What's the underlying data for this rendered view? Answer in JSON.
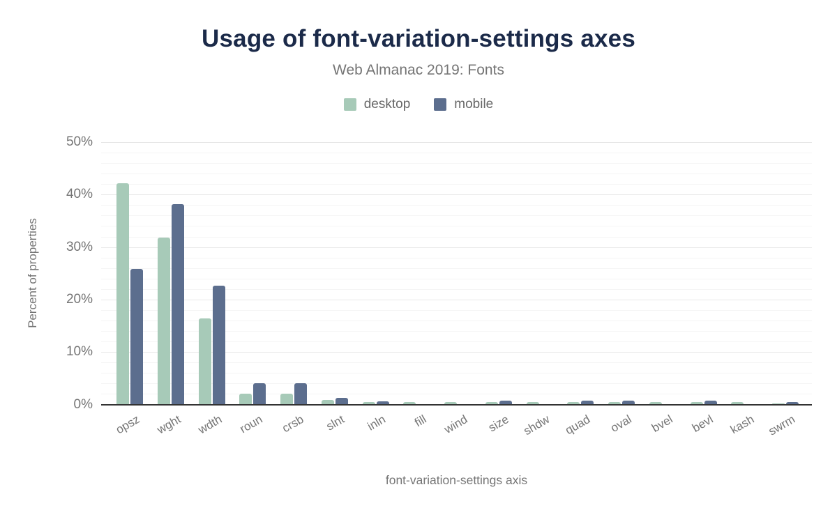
{
  "header": {
    "title": "Usage of font-variation-settings axes",
    "subtitle": "Web Almanac 2019: Fonts"
  },
  "legend": [
    {
      "label": "desktop",
      "color": "#a7cab8"
    },
    {
      "label": "mobile",
      "color": "#5c6e8e"
    }
  ],
  "axes": {
    "x_title": "font-variation-settings axis",
    "y_title": "Percent of properties"
  },
  "chart_data": {
    "type": "bar",
    "title": "Usage of font-variation-settings axes",
    "subtitle": "Web Almanac 2019: Fonts",
    "xlabel": "font-variation-settings axis",
    "ylabel": "Percent of properties",
    "categories": [
      "opsz",
      "wght",
      "wdth",
      "roun",
      "crsb",
      "slnt",
      "inln",
      "fill",
      "wind",
      "size",
      "shdw",
      "quad",
      "oval",
      "bvel",
      "bevl",
      "kash",
      "swrm"
    ],
    "series": [
      {
        "name": "desktop",
        "color": "#a7cab8",
        "values": [
          42.2,
          31.8,
          16.4,
          2.0,
          2.0,
          0.8,
          0.4,
          0.4,
          0.4,
          0.4,
          0.4,
          0.4,
          0.4,
          0.4,
          0.4,
          0.4,
          0.15
        ]
      },
      {
        "name": "mobile",
        "color": "#5c6e8e",
        "values": [
          25.8,
          38.2,
          22.6,
          4.0,
          4.0,
          1.3,
          0.6,
          0.05,
          0.05,
          0.7,
          0.05,
          0.7,
          0.7,
          0.05,
          0.7,
          0.05,
          0.5
        ]
      }
    ],
    "y_ticks": [
      "0%",
      "10%",
      "20%",
      "30%",
      "40%",
      "50%"
    ],
    "ylim": [
      0,
      50
    ],
    "grid": {
      "minor_every": 2,
      "major_every": 10,
      "grid_on": true
    },
    "legend_position": "top",
    "unit": "%"
  },
  "colors": {
    "title": "#1b2a49",
    "muted_text": "#757575",
    "legend_text": "#666666",
    "axis_line": "#333333",
    "grid_major": "#e7e7e7",
    "grid_minor": "#f5f5f5",
    "background": "#ffffff"
  }
}
